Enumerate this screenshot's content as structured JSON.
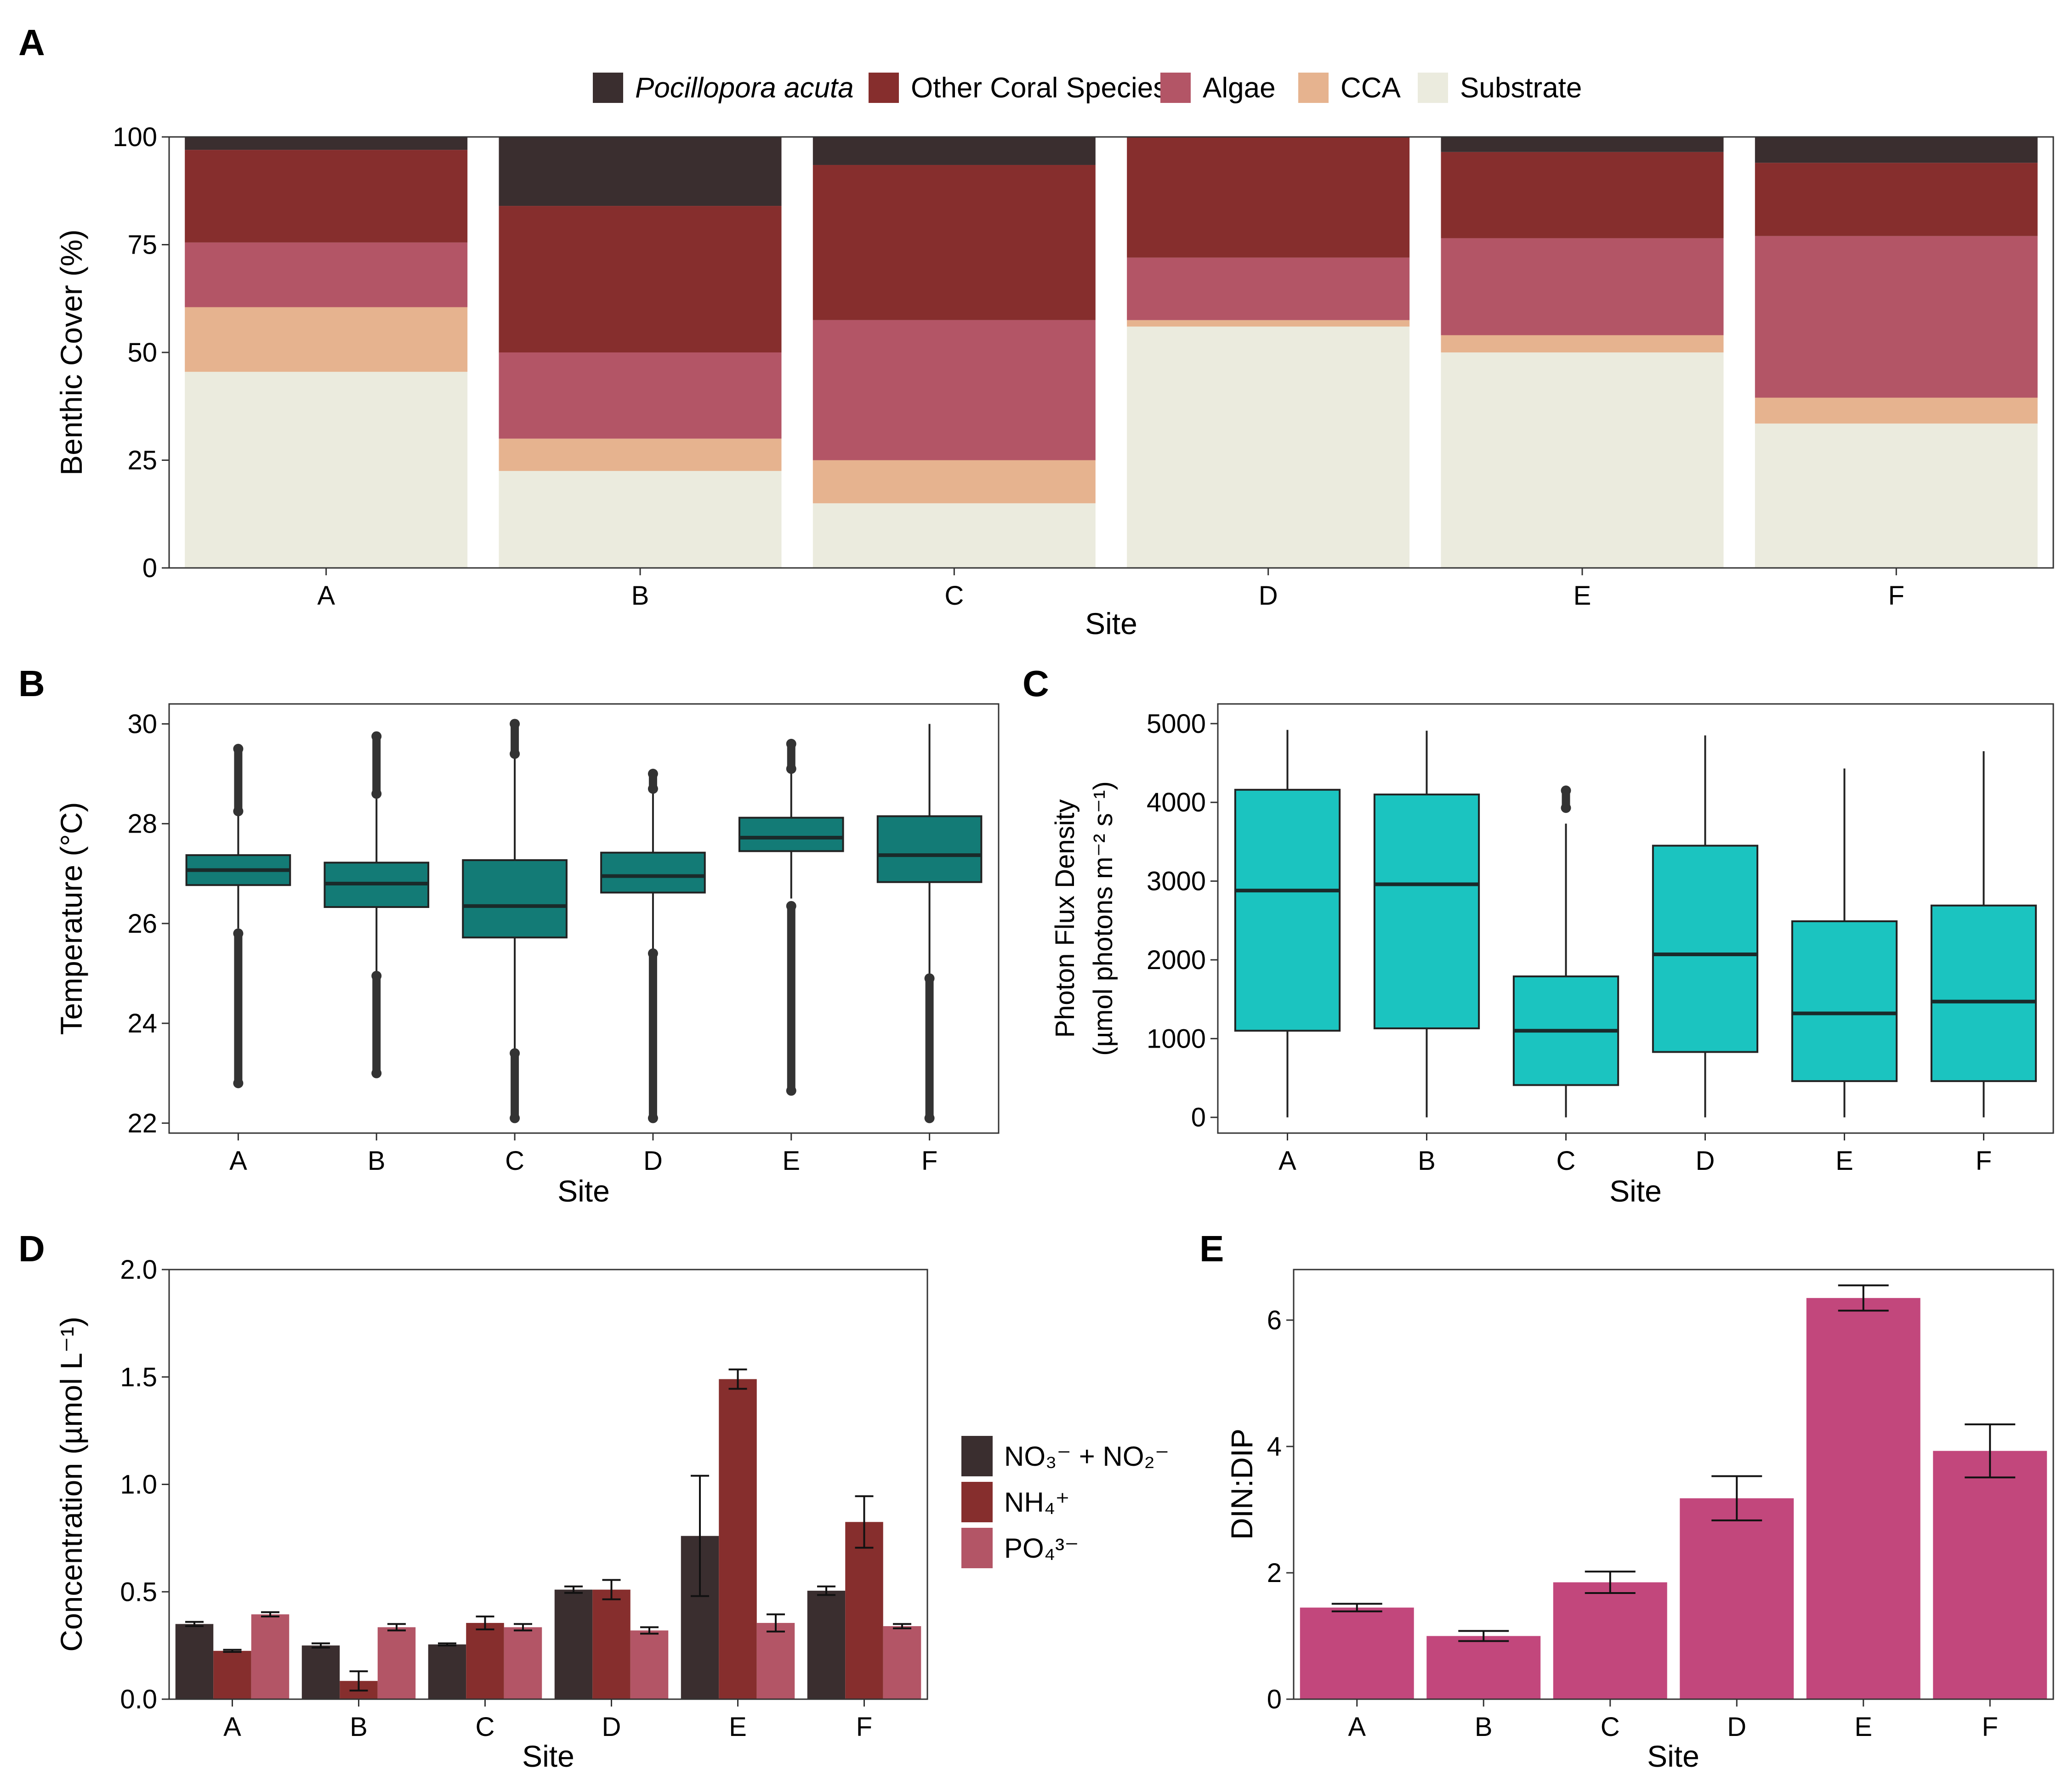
{
  "panel_labels": [
    "A",
    "B",
    "C",
    "D",
    "E"
  ],
  "chart_data": [
    {
      "panel": "A",
      "type": "bar",
      "stacked": true,
      "categories": [
        "A",
        "B",
        "C",
        "D",
        "E",
        "F"
      ],
      "xlabel": "Site",
      "ylabel": "Benthic Cover (%)",
      "ylim": [
        0,
        100
      ],
      "yticks": [
        0,
        25,
        50,
        75,
        100
      ],
      "legend_position": "top",
      "series": [
        {
          "name": "Substrate",
          "color": "#EBEBDE",
          "values": [
            45.5,
            22.5,
            15,
            56,
            50,
            33.5
          ]
        },
        {
          "name": "CCA",
          "color": "#E6B38F",
          "values": [
            15,
            7.5,
            10,
            1.5,
            4,
            6
          ]
        },
        {
          "name": "Algae",
          "color": "#B35566",
          "values": [
            15,
            20,
            32.5,
            14.5,
            22.5,
            37.5
          ]
        },
        {
          "name": "Other Coral Species",
          "color": "#862E2D",
          "values": [
            21.5,
            34,
            36,
            28,
            20,
            17
          ]
        },
        {
          "name": "Pocillopora acuta",
          "italic": true,
          "color": "#3A2E2F",
          "values": [
            3,
            16,
            6.5,
            0,
            3.5,
            6
          ]
        }
      ],
      "legend_order": [
        "Pocillopora acuta",
        "Other Coral Species",
        "Algae",
        "CCA",
        "Substrate"
      ]
    },
    {
      "panel": "B",
      "type": "box",
      "categories": [
        "A",
        "B",
        "C",
        "D",
        "E",
        "F"
      ],
      "xlabel": "Site",
      "ylabel": "Temperature (°C)",
      "ylim": [
        21.8,
        30.4
      ],
      "yticks": [
        22,
        24,
        26,
        28,
        30
      ],
      "color": "#137B76",
      "boxes": [
        {
          "min": 25.9,
          "q1": 26.77,
          "median": 27.07,
          "q3": 27.37,
          "max": 28.2,
          "outliers_low": [
            22.8,
            25.8
          ],
          "outliers_high": [
            28.25,
            29.5
          ]
        },
        {
          "min": 25.0,
          "q1": 26.33,
          "median": 26.8,
          "q3": 27.22,
          "max": 28.5,
          "outliers_low": [
            23.0,
            24.95
          ],
          "outliers_high": [
            28.6,
            29.75
          ]
        },
        {
          "min": 23.4,
          "q1": 25.72,
          "median": 26.35,
          "q3": 27.27,
          "max": 29.4,
          "outliers_low": [
            22.1,
            23.4
          ],
          "outliers_high": [
            29.4,
            30.0
          ]
        },
        {
          "min": 25.4,
          "q1": 26.62,
          "median": 26.95,
          "q3": 27.42,
          "max": 28.6,
          "outliers_low": [
            22.1,
            25.4
          ],
          "outliers_high": [
            28.7,
            29.0
          ]
        },
        {
          "min": 26.5,
          "q1": 27.45,
          "median": 27.72,
          "q3": 28.12,
          "max": 29.0,
          "outliers_low": [
            22.65,
            26.35
          ],
          "outliers_high": [
            29.1,
            29.6
          ]
        },
        {
          "min": 25.0,
          "q1": 26.83,
          "median": 27.37,
          "q3": 28.15,
          "max": 30.0,
          "outliers_low": [
            22.1,
            24.9
          ],
          "outliers_high": []
        }
      ]
    },
    {
      "panel": "C",
      "type": "box",
      "categories": [
        "A",
        "B",
        "C",
        "D",
        "E",
        "F"
      ],
      "xlabel": "Site",
      "ylabel_lines": [
        "Photon Flux Density",
        "(µmol photons m⁻² s⁻¹)"
      ],
      "ylim": [
        -200,
        5250
      ],
      "yticks": [
        0,
        1000,
        2000,
        3000,
        4000,
        5000
      ],
      "color": "#1BC4C0",
      "boxes": [
        {
          "min": 0,
          "q1": 1100,
          "median": 2880,
          "q3": 4160,
          "max": 4920,
          "outliers_low": [],
          "outliers_high": []
        },
        {
          "min": 0,
          "q1": 1130,
          "median": 2960,
          "q3": 4100,
          "max": 4910,
          "outliers_low": [],
          "outliers_high": []
        },
        {
          "min": 0,
          "q1": 410,
          "median": 1100,
          "q3": 1790,
          "max": 3730,
          "outliers_low": [],
          "outliers_high": [
            3930,
            4150
          ]
        },
        {
          "min": 0,
          "q1": 830,
          "median": 2070,
          "q3": 3450,
          "max": 4850,
          "outliers_low": [],
          "outliers_high": []
        },
        {
          "min": 0,
          "q1": 460,
          "median": 1320,
          "q3": 2490,
          "max": 4430,
          "outliers_low": [],
          "outliers_high": []
        },
        {
          "min": 0,
          "q1": 460,
          "median": 1470,
          "q3": 2690,
          "max": 4650,
          "outliers_low": [],
          "outliers_high": []
        }
      ]
    },
    {
      "panel": "D",
      "type": "bar",
      "grouped": true,
      "categories": [
        "A",
        "B",
        "C",
        "D",
        "E",
        "F"
      ],
      "xlabel": "Site",
      "ylabel": "Concentration (µmol L⁻¹)",
      "ylim": [
        0,
        2.0
      ],
      "yticks": [
        "0.0",
        "0.5",
        "1.0",
        "1.5",
        "2.0"
      ],
      "legend_position": "right",
      "series": [
        {
          "name": "NO₃⁻ + NO₂⁻",
          "color": "#3A2E2F",
          "values": [
            0.35,
            0.25,
            0.255,
            0.51,
            0.76,
            0.505
          ],
          "errors": [
            0.01,
            0.01,
            0.005,
            0.015,
            0.28,
            0.02
          ]
        },
        {
          "name": "NH₄⁺",
          "color": "#862E2D",
          "values": [
            0.225,
            0.085,
            0.355,
            0.51,
            1.49,
            0.825
          ],
          "errors": [
            0.005,
            0.045,
            0.03,
            0.045,
            0.045,
            0.12
          ]
        },
        {
          "name": "PO₄³⁻",
          "color": "#B35566",
          "values": [
            0.395,
            0.335,
            0.335,
            0.32,
            0.355,
            0.34
          ],
          "errors": [
            0.01,
            0.015,
            0.015,
            0.015,
            0.04,
            0.01
          ]
        }
      ]
    },
    {
      "panel": "E",
      "type": "bar",
      "categories": [
        "A",
        "B",
        "C",
        "D",
        "E",
        "F"
      ],
      "xlabel": "Site",
      "ylabel": "DIN:DIP",
      "ylim": [
        0,
        6.8
      ],
      "yticks": [
        0,
        2,
        4,
        6
      ],
      "color": "#C2477C",
      "values": [
        1.45,
        1.0,
        1.85,
        3.18,
        6.35,
        3.93
      ],
      "errors": [
        0.06,
        0.08,
        0.17,
        0.35,
        0.2,
        0.42
      ]
    }
  ]
}
